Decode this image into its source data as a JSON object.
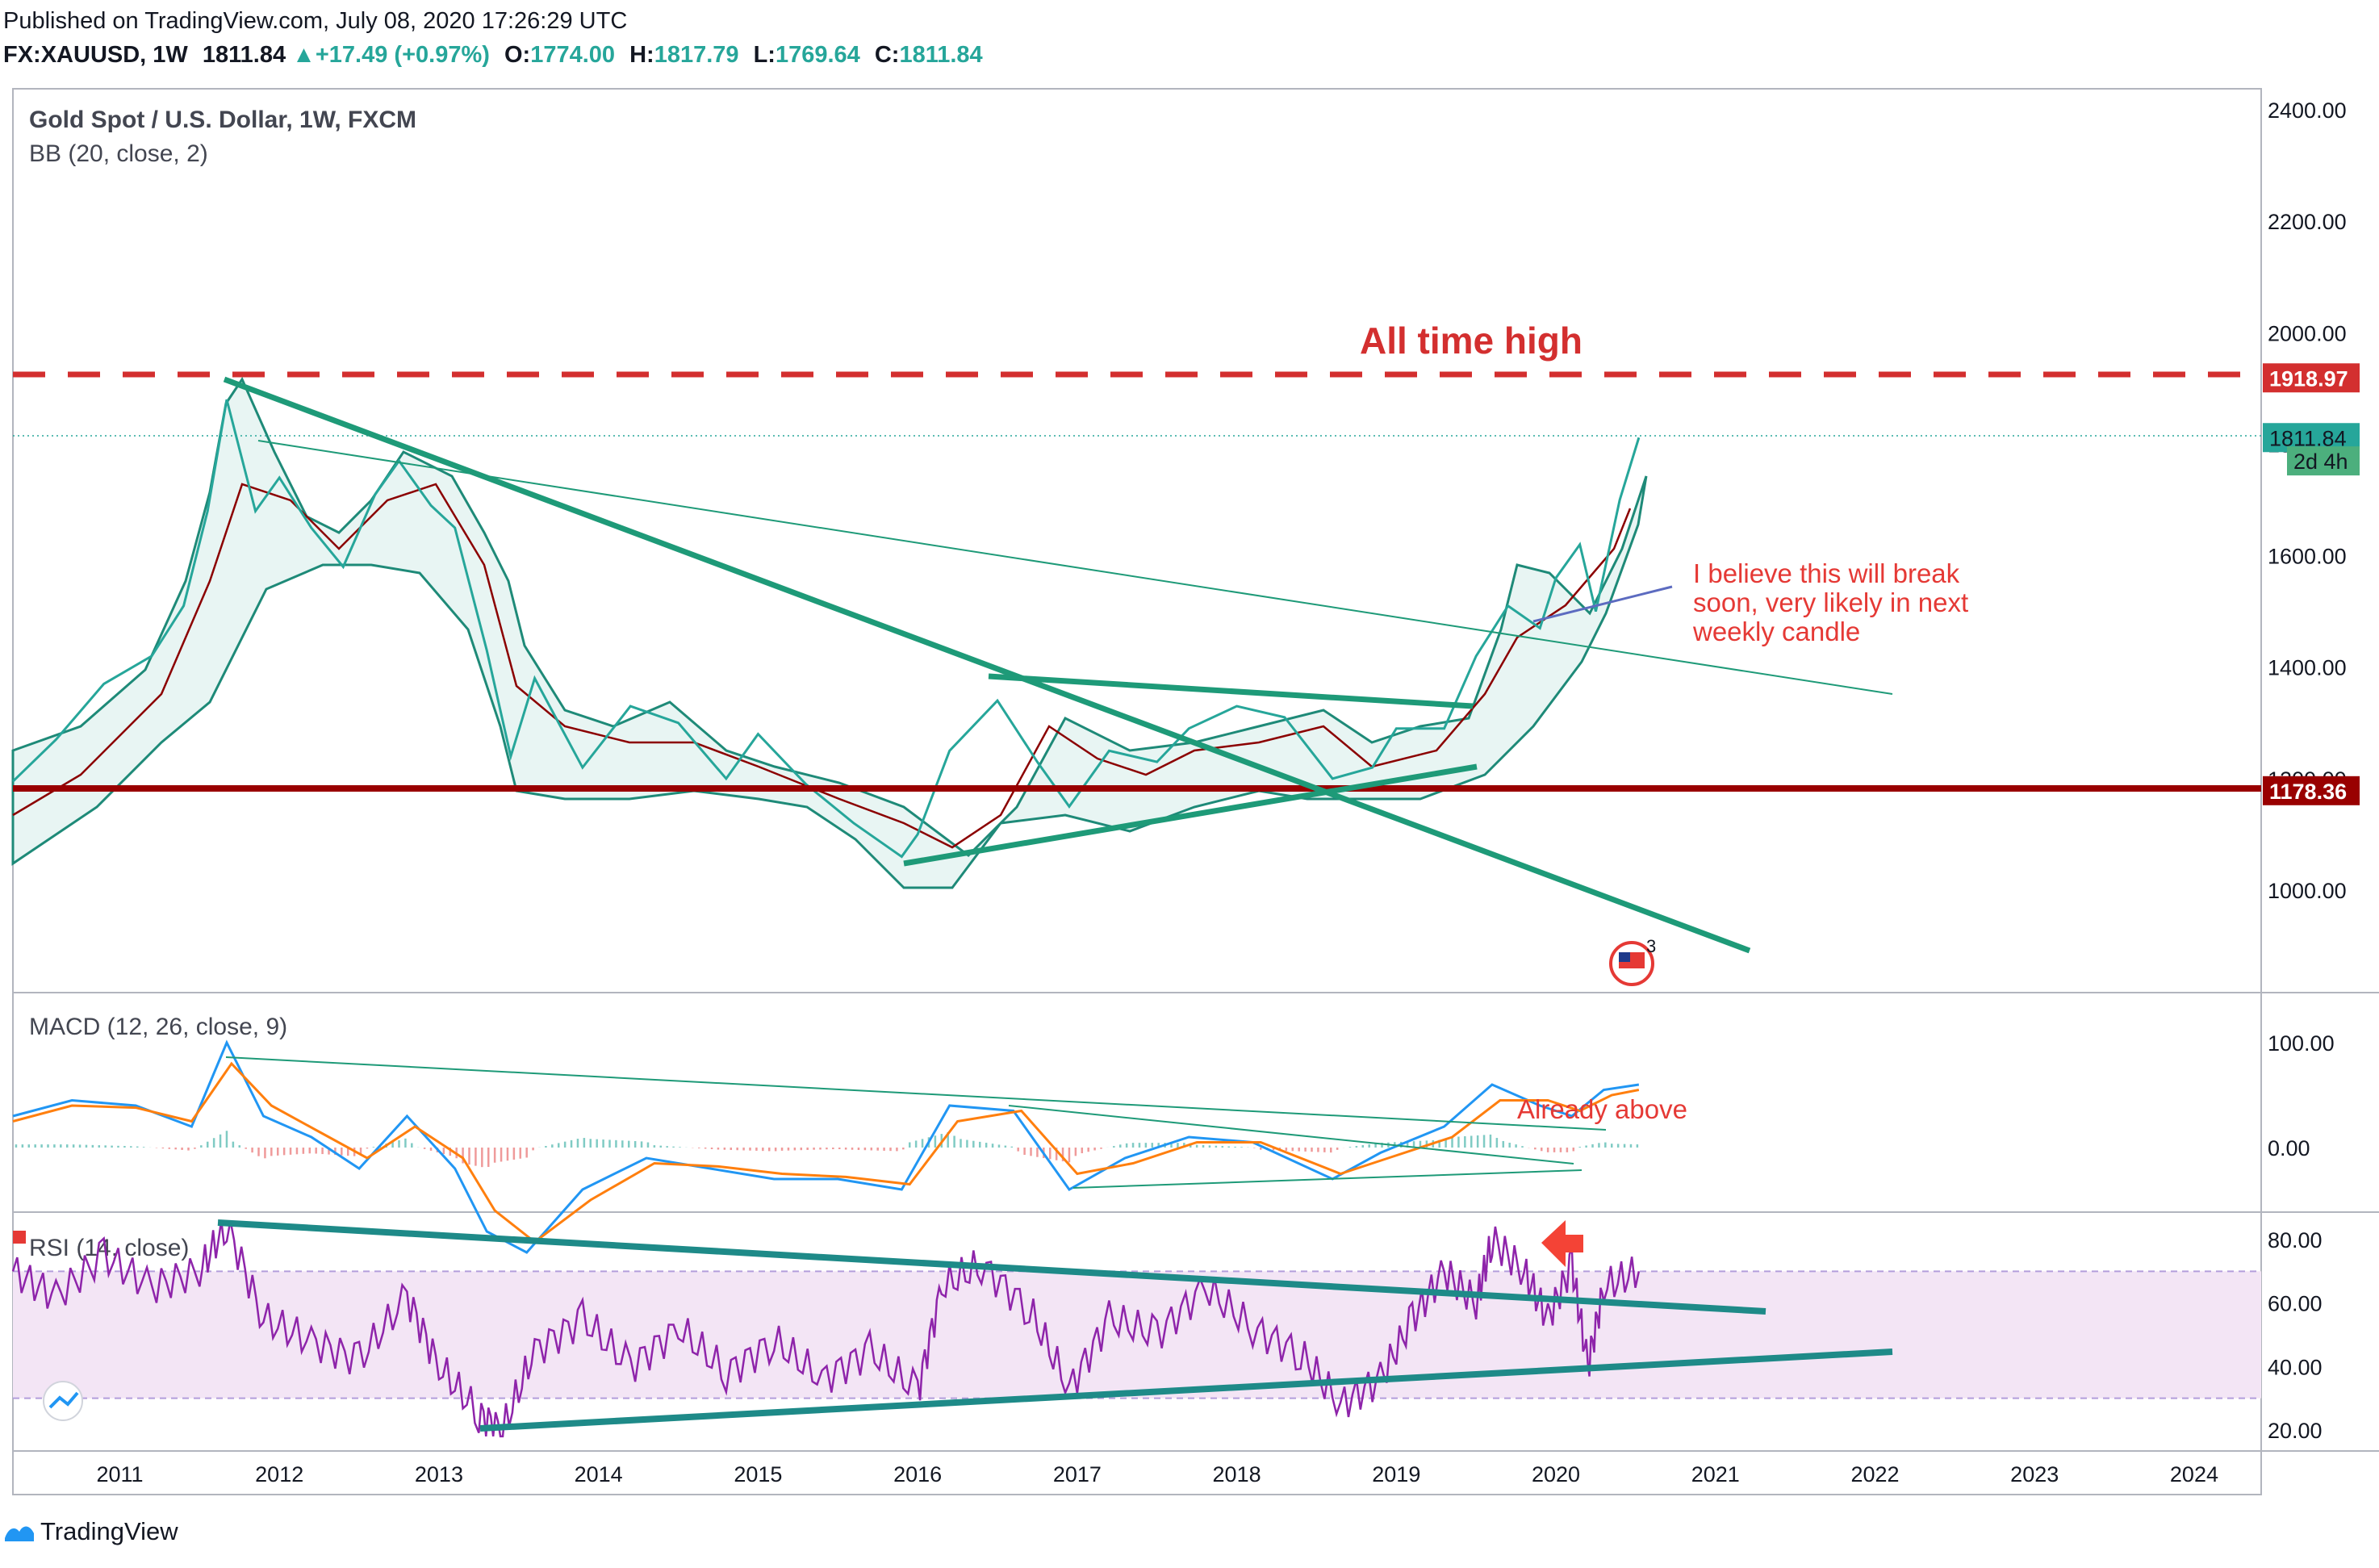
{
  "header": {
    "published": "Published on TradingView.com, July 08, 2020 17:26:29 UTC",
    "symbol": "FX:XAUUSD, 1W",
    "last": "1811.84",
    "change": "+17.49 (+0.97%)",
    "o_label": "O:",
    "o_value": "1774.00",
    "h_label": "H:",
    "h_value": "1817.79",
    "l_label": "L:",
    "l_value": "1769.64",
    "c_label": "C:",
    "c_value": "1811.84"
  },
  "footer": {
    "brand": "TradingView"
  },
  "colors": {
    "up": "#26a69a",
    "down": "#ef5350",
    "annotation_red": "#e53935",
    "ath_line": "#d32f2f",
    "support_line": "#990000",
    "trend_green": "#1e9a78",
    "bb_fill": "#e8f5f3",
    "rsi_purple": "#8e24aa",
    "macd_blue": "#2196f3",
    "signal_orange": "#ff7f0e"
  },
  "chart_data": [
    {
      "type": "line",
      "panel": "price",
      "title": "Gold Spot / U.S. Dollar, 1W, FXCM",
      "indicator": "BB (20, close, 2)",
      "ylim": [
        880,
        2420
      ],
      "y_ticks": [
        "2400.00",
        "2200.00",
        "2000.00",
        "1800.00",
        "1600.00",
        "1400.00",
        "1200.00",
        "1000.00"
      ],
      "x_ticks": [
        "2011",
        "2012",
        "2013",
        "2014",
        "2015",
        "2016",
        "2017",
        "2018",
        "2019",
        "2020",
        "2021",
        "2022",
        "2023",
        "2024"
      ],
      "x_range": [
        2010.33,
        2024.42
      ],
      "series": [
        {
          "x": [
            2010.33,
            2010.6,
            2010.9,
            2011.2,
            2011.4,
            2011.55,
            2011.67,
            2011.85,
            2012.0,
            2012.2,
            2012.4,
            2012.6,
            2012.75,
            2012.95,
            2013.1,
            2013.3,
            2013.45,
            2013.6,
            2013.9,
            2014.2,
            2014.5,
            2014.8,
            2015.0,
            2015.3,
            2015.6,
            2015.9,
            2016.0,
            2016.2,
            2016.5,
            2016.75,
            2016.95,
            2017.2,
            2017.5,
            2017.7,
            2018.0,
            2018.3,
            2018.6,
            2018.85,
            2019.0,
            2019.3,
            2019.5,
            2019.7,
            2019.9,
            2020.0,
            2020.15,
            2020.25,
            2020.4,
            2020.52
          ],
          "values": [
            1195,
            1270,
            1370,
            1420,
            1510,
            1680,
            1880,
            1680,
            1740,
            1650,
            1580,
            1710,
            1770,
            1690,
            1650,
            1430,
            1240,
            1380,
            1220,
            1330,
            1300,
            1200,
            1280,
            1190,
            1120,
            1060,
            1100,
            1250,
            1340,
            1230,
            1150,
            1250,
            1230,
            1290,
            1330,
            1310,
            1200,
            1220,
            1290,
            1290,
            1420,
            1510,
            1470,
            1560,
            1620,
            1500,
            1700,
            1811.84
          ]
        }
      ],
      "annotations": [
        {
          "text": "All time high",
          "level": 1918.97
        },
        {
          "text": "I believe this will break soon, very likely in next weekly candle"
        }
      ],
      "price_labels": [
        {
          "text": "1918.97",
          "value": 1918.97
        },
        {
          "text": "1811.84",
          "value": 1811.84
        },
        {
          "text": "2d 4h",
          "value": 1770
        },
        {
          "text": "1178.36",
          "value": 1178.36
        }
      ],
      "event_badge": "3"
    },
    {
      "type": "line",
      "panel": "macd",
      "title": "MACD (12, 26, close, 9)",
      "ylim": [
        -110,
        120
      ],
      "y_ticks": [
        "100.00",
        "0.00"
      ],
      "annotations": [
        {
          "text": "Already above"
        }
      ],
      "series": [
        {
          "x": [
            2010.33,
            2010.7,
            2011.1,
            2011.45,
            2011.67,
            2011.9,
            2012.2,
            2012.5,
            2012.8,
            2013.1,
            2013.3,
            2013.55,
            2013.9,
            2014.3,
            2014.7,
            2015.1,
            2015.5,
            2015.9,
            2016.2,
            2016.6,
            2016.95,
            2017.3,
            2017.7,
            2018.1,
            2018.6,
            2018.9,
            2019.3,
            2019.6,
            2019.9,
            2020.1,
            2020.3,
            2020.52
          ],
          "values": [
            30,
            45,
            40,
            20,
            100,
            30,
            10,
            -20,
            30,
            -20,
            -80,
            -100,
            -40,
            -10,
            -20,
            -30,
            -30,
            -40,
            40,
            35,
            -40,
            -10,
            10,
            5,
            -30,
            -5,
            20,
            60,
            40,
            30,
            55,
            60
          ]
        },
        {
          "x": [
            2010.33,
            2010.7,
            2011.1,
            2011.45,
            2011.7,
            2011.95,
            2012.25,
            2012.55,
            2012.85,
            2013.15,
            2013.35,
            2013.6,
            2013.95,
            2014.35,
            2014.75,
            2015.15,
            2015.55,
            2015.95,
            2016.25,
            2016.65,
            2017.0,
            2017.35,
            2017.75,
            2018.15,
            2018.65,
            2018.95,
            2019.35,
            2019.65,
            2019.95,
            2020.15,
            2020.35,
            2020.52
          ],
          "values": [
            25,
            40,
            38,
            25,
            80,
            40,
            15,
            -10,
            20,
            -10,
            -60,
            -90,
            -50,
            -15,
            -18,
            -25,
            -28,
            -35,
            25,
            35,
            -25,
            -15,
            5,
            5,
            -25,
            -10,
            10,
            45,
            45,
            35,
            50,
            55
          ]
        }
      ]
    },
    {
      "type": "line",
      "panel": "rsi",
      "title": "RSI (14, close)",
      "ylim": [
        15,
        88
      ],
      "y_ticks": [
        "80.00",
        "60.00",
        "40.00",
        "20.00"
      ],
      "bands": [
        30,
        70
      ],
      "series": [
        {
          "x": [
            2010.33,
            2010.6,
            2010.9,
            2011.2,
            2011.5,
            2011.67,
            2011.9,
            2012.2,
            2012.5,
            2012.8,
            2013.0,
            2013.25,
            2013.4,
            2013.6,
            2013.9,
            2014.2,
            2014.5,
            2014.8,
            2015.1,
            2015.4,
            2015.7,
            2016.0,
            2016.15,
            2016.4,
            2016.7,
            2016.95,
            2017.2,
            2017.5,
            2017.8,
            2018.1,
            2018.4,
            2018.65,
            2018.9,
            2019.1,
            2019.3,
            2019.5,
            2019.6,
            2019.8,
            2019.95,
            2020.1,
            2020.2,
            2020.3,
            2020.52
          ],
          "values": [
            70,
            62,
            75,
            65,
            70,
            85,
            55,
            48,
            42,
            62,
            40,
            25,
            20,
            45,
            55,
            40,
            52,
            38,
            48,
            36,
            45,
            32,
            65,
            72,
            58,
            33,
            55,
            50,
            65,
            52,
            44,
            28,
            36,
            55,
            70,
            60,
            80,
            70,
            55,
            72,
            40,
            65,
            70
          ]
        }
      ]
    }
  ]
}
